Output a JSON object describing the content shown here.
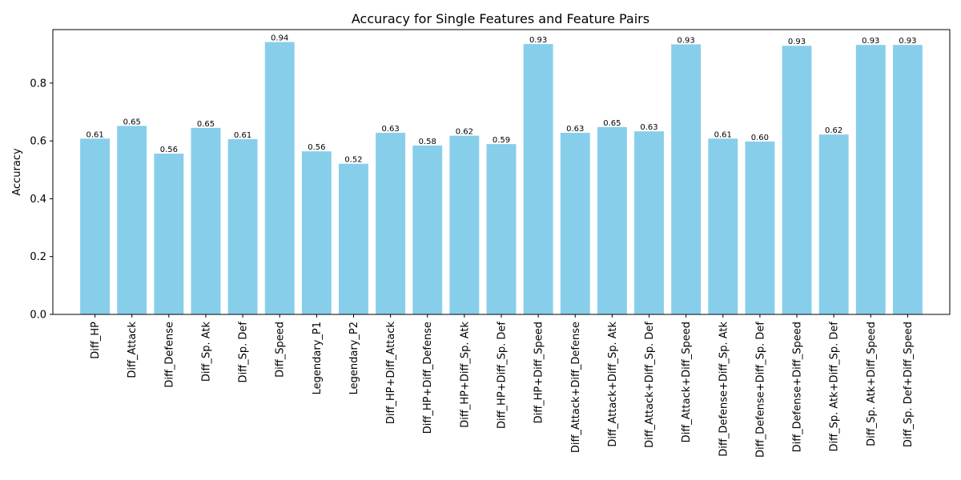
{
  "chart_data": {
    "type": "bar",
    "title": "Accuracy for Single Features and Feature Pairs",
    "xlabel": "",
    "ylabel": "Accuracy",
    "ylim": [
      0,
      0.985
    ],
    "yticks": [
      0.0,
      0.2,
      0.4,
      0.6,
      0.8
    ],
    "grid": false,
    "bar_color": "#87ceeb",
    "categories": [
      "Diff_HP",
      "Diff_Attack",
      "Diff_Defense",
      "Diff_Sp. Atk",
      "Diff_Sp. Def",
      "Diff_Speed",
      "Legendary_P1",
      "Legendary_P2",
      "Diff_HP+Diff_Attack",
      "Diff_HP+Diff_Defense",
      "Diff_HP+Diff_Sp. Atk",
      "Diff_HP+Diff_Sp. Def",
      "Diff_HP+Diff_Speed",
      "Diff_Attack+Diff_Defense",
      "Diff_Attack+Diff_Sp. Atk",
      "Diff_Attack+Diff_Sp. Def",
      "Diff_Attack+Diff_Speed",
      "Diff_Defense+Diff_Sp. Atk",
      "Diff_Defense+Diff_Sp. Def",
      "Diff_Defense+Diff_Speed",
      "Diff_Sp. Atk+Diff_Sp. Def",
      "Diff_Sp. Atk+Diff_Speed",
      "Diff_Sp. Def+Diff_Speed"
    ],
    "values": [
      0.608,
      0.652,
      0.556,
      0.645,
      0.606,
      0.942,
      0.564,
      0.521,
      0.628,
      0.584,
      0.618,
      0.589,
      0.935,
      0.628,
      0.648,
      0.633,
      0.934,
      0.608,
      0.598,
      0.929,
      0.622,
      0.932,
      0.932
    ],
    "value_labels": [
      "0.61",
      "0.65",
      "0.56",
      "0.65",
      "0.61",
      "0.94",
      "0.56",
      "0.52",
      "0.63",
      "0.58",
      "0.62",
      "0.59",
      "0.93",
      "0.63",
      "0.65",
      "0.63",
      "0.93",
      "0.61",
      "0.60",
      "0.93",
      "0.62",
      "0.93",
      "0.93"
    ]
  }
}
